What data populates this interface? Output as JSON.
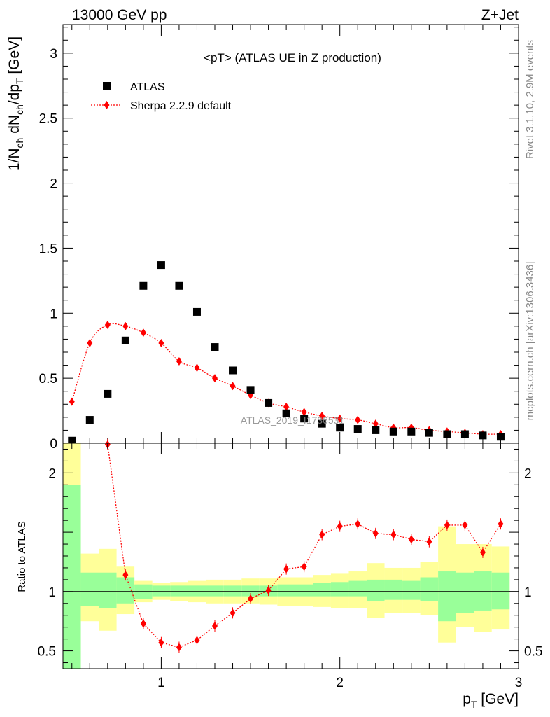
{
  "header": {
    "left": "13000 GeV pp",
    "right": "Z+Jet"
  },
  "plot_title": "<pT> (ATLAS UE in Z production)",
  "side_text": {
    "rivet": "Rivet 3.1.10,  2.9M events",
    "mcplots": "mcplots.cern.ch [arXiv:1306.3436]"
  },
  "watermark": "ATLAS_2019_I1736531",
  "legend": {
    "data_label": "ATLAS",
    "mc_label": "Sherpa 2.2.9 default"
  },
  "colors": {
    "data": "#000000",
    "mc": "#ff0000",
    "band_inner": "#99ff99",
    "band_outer": "#ffff99"
  },
  "chart_data": [
    {
      "type": "scatter",
      "title": "<pT> (ATLAS UE in Z production)",
      "xlabel": "",
      "ylabel": "1/N_ch dN_ch/dp_T [GeV]",
      "xlim": [
        0.45,
        3.0
      ],
      "ylim": [
        0,
        3.22
      ],
      "yticks": [
        0,
        0.5,
        1,
        1.5,
        2,
        2.5,
        3
      ],
      "ytick_labels": [
        "0",
        "0.5",
        "1",
        "1.5",
        "2",
        "2.5",
        "3"
      ],
      "x": [
        0.5,
        0.6,
        0.7,
        0.8,
        0.9,
        1.0,
        1.1,
        1.2,
        1.3,
        1.4,
        1.5,
        1.6,
        1.7,
        1.8,
        1.9,
        2.0,
        2.1,
        2.2,
        2.3,
        2.4,
        2.5,
        2.6,
        2.7,
        2.8,
        2.9
      ],
      "series": [
        {
          "name": "ATLAS",
          "values": [
            0.02,
            0.18,
            0.38,
            0.79,
            1.21,
            1.37,
            1.21,
            1.01,
            0.74,
            0.56,
            0.41,
            0.31,
            0.23,
            0.19,
            0.15,
            0.12,
            0.11,
            0.1,
            0.09,
            0.09,
            0.08,
            0.07,
            0.07,
            0.06,
            0.05
          ]
        },
        {
          "name": "Sherpa 2.2.9 default",
          "values": [
            0.32,
            0.77,
            0.91,
            0.9,
            0.85,
            0.77,
            0.63,
            0.58,
            0.5,
            0.44,
            0.37,
            0.31,
            0.28,
            0.24,
            0.21,
            0.19,
            0.18,
            0.15,
            0.12,
            0.12,
            0.1,
            0.09,
            0.08,
            0.07,
            0.07
          ]
        }
      ]
    },
    {
      "type": "line",
      "xlabel": "p_T [GeV]",
      "ylabel": "Ratio to ATLAS",
      "xlim": [
        0.45,
        3.0
      ],
      "ylim": [
        0.35,
        2.25
      ],
      "xticks": [
        1,
        2,
        3
      ],
      "xtick_labels": [
        "1",
        "2",
        "3"
      ],
      "yticks": [
        0.5,
        1,
        2
      ],
      "ytick_labels": [
        "0.5",
        "1",
        "2"
      ],
      "bin_edges": [
        0.45,
        0.55,
        0.65,
        0.75,
        0.85,
        0.95,
        1.05,
        1.15,
        1.25,
        1.35,
        1.45,
        1.55,
        1.65,
        1.75,
        1.85,
        1.95,
        2.05,
        2.15,
        2.25,
        2.35,
        2.45,
        2.55,
        2.65,
        2.75,
        2.85,
        2.95
      ],
      "band_inner": {
        "low": [
          0.35,
          0.88,
          0.86,
          0.9,
          0.94,
          0.96,
          0.96,
          0.96,
          0.96,
          0.96,
          0.96,
          0.96,
          0.96,
          0.96,
          0.96,
          0.96,
          0.96,
          0.92,
          0.93,
          0.93,
          0.92,
          0.75,
          0.82,
          0.84,
          0.85
        ],
        "high": [
          1.9,
          1.16,
          1.16,
          1.12,
          1.06,
          1.05,
          1.05,
          1.05,
          1.05,
          1.05,
          1.05,
          1.05,
          1.06,
          1.06,
          1.07,
          1.08,
          1.09,
          1.1,
          1.1,
          1.09,
          1.12,
          1.17,
          1.16,
          1.17,
          1.16
        ]
      },
      "band_outer": {
        "low": [
          0.35,
          0.75,
          0.67,
          0.81,
          0.91,
          0.93,
          0.92,
          0.91,
          0.9,
          0.9,
          0.9,
          0.89,
          0.88,
          0.88,
          0.87,
          0.86,
          0.86,
          0.78,
          0.82,
          0.82,
          0.8,
          0.57,
          0.7,
          0.66,
          0.68
        ],
        "high": [
          2.25,
          1.32,
          1.36,
          1.21,
          1.09,
          1.07,
          1.08,
          1.09,
          1.1,
          1.1,
          1.11,
          1.11,
          1.12,
          1.12,
          1.14,
          1.15,
          1.17,
          1.24,
          1.2,
          1.2,
          1.25,
          1.55,
          1.4,
          1.4,
          1.38
        ]
      },
      "x": [
        0.7,
        0.8,
        0.9,
        1.0,
        1.1,
        1.2,
        1.3,
        1.4,
        1.5,
        1.6,
        1.7,
        1.8,
        1.9,
        2.0,
        2.1,
        2.2,
        2.3,
        2.4,
        2.5,
        2.6,
        2.7,
        2.8,
        2.9
      ],
      "series": [
        {
          "name": "Sherpa 2.2.9 default",
          "values": [
            2.24,
            1.14,
            0.73,
            0.57,
            0.53,
            0.59,
            0.71,
            0.82,
            0.94,
            1.01,
            1.19,
            1.21,
            1.48,
            1.55,
            1.57,
            1.49,
            1.48,
            1.44,
            1.42,
            1.56,
            1.56,
            1.33,
            1.57
          ]
        }
      ]
    }
  ]
}
